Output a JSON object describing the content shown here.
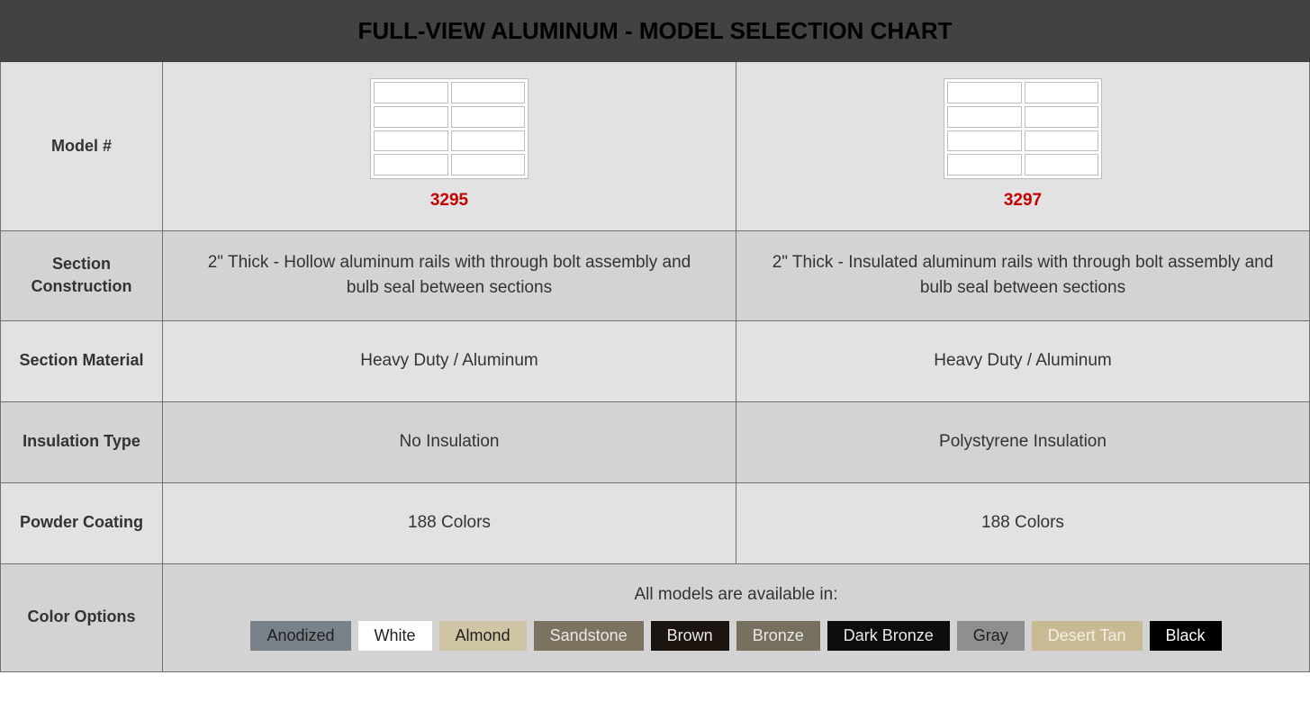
{
  "title": "FULL-VIEW ALUMINUM - MODEL SELECTION CHART",
  "labels": {
    "model": "Model #",
    "section_construction": "Section Construction",
    "section_material": "Section Material",
    "insulation_type": "Insulation Type",
    "powder_coating": "Powder Coating",
    "color_options": "Color Options"
  },
  "models": [
    {
      "number": "3295",
      "section_construction": "2\" Thick - Hollow aluminum rails with through bolt assembly and bulb seal between sections",
      "section_material": "Heavy Duty / Aluminum",
      "insulation_type": "No Insulation",
      "powder_coating": "188 Colors"
    },
    {
      "number": "3297",
      "section_construction": "2\" Thick - Insulated aluminum rails with through bolt assembly and bulb seal between sections",
      "section_material": "Heavy Duty / Aluminum",
      "insulation_type": "Polystyrene Insulation",
      "powder_coating": "188 Colors"
    }
  ],
  "color_options": {
    "intro": "All models are available in:",
    "swatches": [
      {
        "name": "Anodized",
        "bg": "#7a8289",
        "fg": "#1f1f1f"
      },
      {
        "name": "White",
        "bg": "#ffffff",
        "fg": "#1f1f1f"
      },
      {
        "name": "Almond",
        "bg": "#cfc4a3",
        "fg": "#1f1f1f"
      },
      {
        "name": "Sandstone",
        "bg": "#7c7260",
        "fg": "#e9e9e9"
      },
      {
        "name": "Brown",
        "bg": "#1c140f",
        "fg": "#e9e9e9"
      },
      {
        "name": "Bronze",
        "bg": "#77705f",
        "fg": "#e9e9e9"
      },
      {
        "name": "Dark Bronze",
        "bg": "#0d0d0d",
        "fg": "#e9e9e9"
      },
      {
        "name": "Gray",
        "bg": "#8f8f8f",
        "fg": "#1f1f1f"
      },
      {
        "name": "Desert Tan",
        "bg": "#c8bb93",
        "fg": "#f4f0e4"
      },
      {
        "name": "Black",
        "bg": "#000000",
        "fg": "#ffffff"
      }
    ]
  },
  "row_heights": {
    "model": 180,
    "section_construction": 100,
    "section_material": 90,
    "insulation_type": 90,
    "powder_coating": 90,
    "color_options": 120
  },
  "colors": {
    "title_bg": "#424242",
    "row_bg_1": "#e2e2e2",
    "row_bg_2": "#d3d3d3",
    "border": "#707070",
    "model_number": "#c40000",
    "text": "#333333"
  }
}
